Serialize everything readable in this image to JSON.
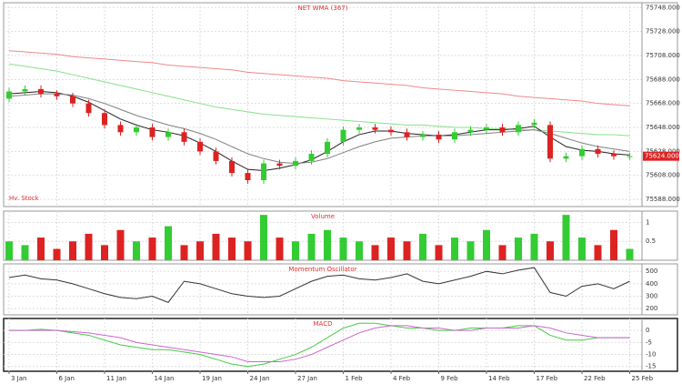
{
  "chart_data": [
    {
      "type": "candlestick",
      "title": "NET WMA (367)",
      "annotation": "Hv. Stock",
      "up_color": "#33cc33",
      "down_color": "#dd2222",
      "grid": true,
      "open": [
        75672,
        75678,
        75680,
        75676,
        75674,
        75668,
        75660,
        75650,
        75644,
        75648,
        75640,
        75644,
        75636,
        75628,
        75620,
        75610,
        75604,
        75618,
        75616,
        75620,
        75626,
        75636,
        75646,
        75648,
        75646,
        75644,
        75640,
        75642,
        75638,
        75644,
        75646,
        75648,
        75644,
        75650,
        75650,
        75622,
        75624,
        75630,
        75626,
        75624
      ],
      "high": [
        75681,
        75683,
        75683,
        75679,
        75677,
        75671,
        75663,
        75653,
        75651,
        75651,
        75647,
        75647,
        75639,
        75631,
        75623,
        75613,
        75621,
        75621,
        75623,
        75629,
        75639,
        75649,
        75651,
        75651,
        75649,
        75647,
        75645,
        75645,
        75647,
        75649,
        75651,
        75651,
        75653,
        75655,
        75653,
        75627,
        75633,
        75633,
        75629,
        75627
      ],
      "low": [
        75669,
        75675,
        75673,
        75671,
        75665,
        75657,
        75647,
        75641,
        75641,
        75637,
        75637,
        75633,
        75625,
        75617,
        75607,
        75601,
        75601,
        75613,
        75613,
        75617,
        75623,
        75633,
        75643,
        75643,
        75641,
        75637,
        75637,
        75635,
        75635,
        75641,
        75643,
        75641,
        75641,
        75647,
        75619,
        75619,
        75621,
        75623,
        75621,
        75621
      ],
      "close": [
        75678,
        75680,
        75676,
        75674,
        75668,
        75660,
        75650,
        75644,
        75648,
        75640,
        75644,
        75636,
        75628,
        75620,
        75610,
        75604,
        75618,
        75616,
        75620,
        75626,
        75636,
        75646,
        75648,
        75646,
        75644,
        75640,
        75642,
        75638,
        75644,
        75646,
        75648,
        75644,
        75650,
        75652,
        75622,
        75624,
        75630,
        75626,
        75624,
        75624
      ],
      "last": {
        "value": 75624,
        "label": "75624.000"
      },
      "lines": [
        {
          "color": "#f08888",
          "values": [
            75712,
            75711,
            75710,
            75709,
            75707,
            75706,
            75705,
            75704,
            75703,
            75702,
            75700,
            75699,
            75698,
            75697,
            75696,
            75694,
            75693,
            75692,
            75691,
            75690,
            75689,
            75687,
            75686,
            75685,
            75684,
            75683,
            75681,
            75680,
            75679,
            75678,
            75677,
            75676,
            75674,
            75673,
            75672,
            75671,
            75670,
            75668,
            75667,
            75666
          ]
        },
        {
          "color": "#88e088",
          "values": [
            75701,
            75699,
            75697,
            75695,
            75692,
            75689,
            75686,
            75683,
            75680,
            75677,
            75674,
            75671,
            75668,
            75665,
            75663,
            75661,
            75659,
            75658,
            75657,
            75656,
            75655,
            75654,
            75653,
            75652,
            75651,
            75650,
            75650,
            75649,
            75648,
            75648,
            75647,
            75647,
            75646,
            75646,
            75645,
            75644,
            75643,
            75642,
            75642,
            75641
          ]
        },
        {
          "color": "#222222",
          "values": [
            75676,
            75677,
            75678,
            75677,
            75674,
            75669,
            75662,
            75655,
            75650,
            75646,
            75644,
            75641,
            75635,
            75628,
            75620,
            75613,
            75612,
            75614,
            75617,
            75621,
            75628,
            75636,
            75642,
            75645,
            75645,
            75643,
            75642,
            75641,
            75642,
            75644,
            75646,
            75646,
            75647,
            75649,
            75640,
            75632,
            75629,
            75628,
            75626,
            75625
          ]
        },
        {
          "color": "#808080",
          "values": [
            75674,
            75675,
            75676,
            75676,
            75675,
            75672,
            75668,
            75663,
            75658,
            75654,
            75650,
            75647,
            75643,
            75638,
            75632,
            75626,
            75622,
            75619,
            75618,
            75619,
            75622,
            75627,
            75632,
            75636,
            75639,
            75640,
            75641,
            75641,
            75641,
            75642,
            75643,
            75644,
            75645,
            75646,
            75643,
            75639,
            75635,
            75632,
            75630,
            75628
          ]
        }
      ],
      "ylim": [
        75582,
        75752
      ],
      "yticks": [
        {
          "value": 75748,
          "label": "75748.000"
        },
        {
          "value": 75728,
          "label": "75728.000"
        },
        {
          "value": 75708,
          "label": "75708.000"
        },
        {
          "value": 75688,
          "label": "75688.000"
        },
        {
          "value": 75668,
          "label": "75668.000"
        },
        {
          "value": 75648,
          "label": "75648.000"
        },
        {
          "value": 75628,
          "label": "75628.000"
        },
        {
          "value": 75608,
          "label": "75608.000"
        },
        {
          "value": 75588,
          "label": "75588.000"
        }
      ]
    },
    {
      "type": "bar",
      "title": "Volume",
      "grid": true,
      "values": [
        0.5,
        0.4,
        0.6,
        0.3,
        0.5,
        0.7,
        0.4,
        0.8,
        0.5,
        0.6,
        0.9,
        0.4,
        0.5,
        0.7,
        0.6,
        0.5,
        1.2,
        0.6,
        0.5,
        0.7,
        0.8,
        0.6,
        0.5,
        0.4,
        0.6,
        0.5,
        0.7,
        0.4,
        0.6,
        0.5,
        0.8,
        0.4,
        0.6,
        0.7,
        0.5,
        1.2,
        0.6,
        0.4,
        0.8,
        0.3
      ],
      "ylim": [
        0,
        1.3
      ],
      "yticks": [
        0.5,
        1
      ]
    },
    {
      "type": "line",
      "title": "Momentum Oscillator",
      "color": "#333333",
      "grid": true,
      "values": [
        450,
        470,
        440,
        430,
        400,
        360,
        320,
        290,
        280,
        300,
        250,
        420,
        400,
        360,
        320,
        300,
        290,
        300,
        360,
        420,
        460,
        470,
        440,
        430,
        450,
        480,
        420,
        400,
        430,
        460,
        500,
        480,
        510,
        530,
        330,
        300,
        380,
        400,
        360,
        420
      ],
      "ylim": [
        150,
        560
      ],
      "yticks": [
        200,
        300,
        400,
        500
      ]
    },
    {
      "type": "line",
      "title": "MACD",
      "grid": true,
      "categories": [
        "3 Jan",
        null,
        null,
        "6 Jan",
        null,
        null,
        "11 Jan",
        null,
        null,
        "14 Jan",
        null,
        null,
        "19 Jan",
        null,
        null,
        "24 Jan",
        null,
        null,
        "27 Jan",
        null,
        null,
        "1 Feb",
        null,
        null,
        "4 Feb",
        null,
        null,
        "9 Feb",
        null,
        null,
        "14 Feb",
        null,
        null,
        "17 Feb",
        null,
        null,
        "22 Feb",
        null,
        null,
        "25 Feb"
      ],
      "series": [
        {
          "color": "#44cc44",
          "values": [
            0,
            0,
            0.5,
            0,
            -1,
            -2,
            -4,
            -6,
            -7,
            -8,
            -8,
            -9,
            -10,
            -12,
            -14,
            -15,
            -14,
            -12,
            -10,
            -7,
            -3,
            1,
            3,
            3,
            2,
            1,
            1,
            0,
            0,
            1,
            1,
            1,
            2,
            2,
            -2,
            -4,
            -4,
            -3,
            -3,
            -3
          ]
        },
        {
          "color": "#cc66cc",
          "values": [
            0,
            0,
            0,
            0,
            -0.5,
            -1,
            -2,
            -3,
            -5,
            -6,
            -7,
            -8,
            -9,
            -10,
            -11,
            -13,
            -13,
            -13,
            -12,
            -10,
            -7,
            -4,
            -1,
            1,
            2,
            2,
            1,
            1,
            0,
            0,
            1,
            1,
            1,
            2,
            1,
            -1,
            -2,
            -3,
            -3,
            -3
          ]
        }
      ],
      "ylim": [
        -17,
        5
      ],
      "yticks": [
        0,
        -5,
        -10,
        -15
      ]
    }
  ]
}
